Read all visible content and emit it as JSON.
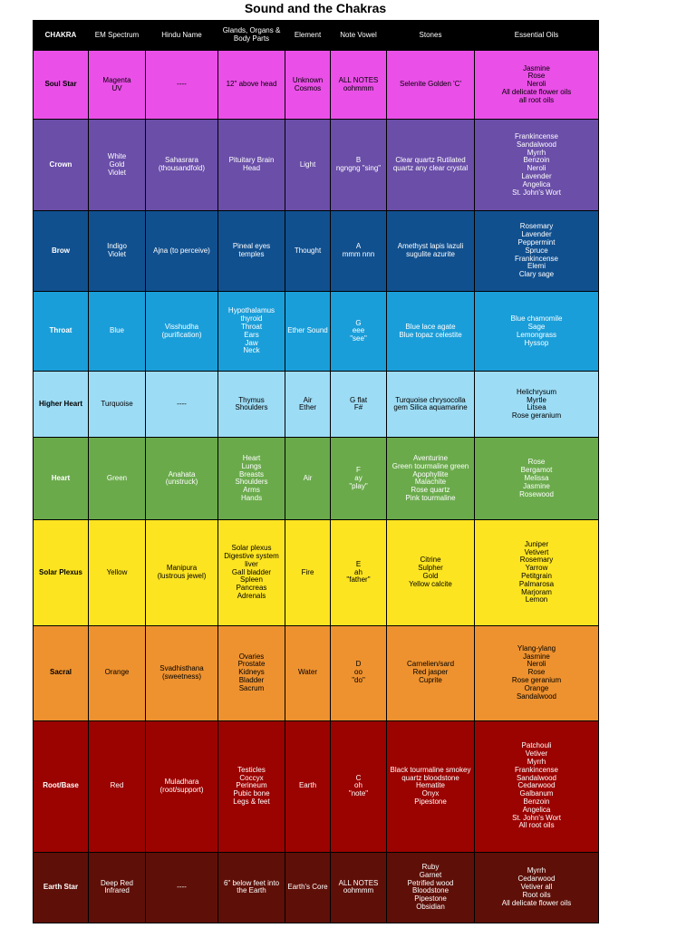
{
  "title": "Sound and the Chakras",
  "columns": [
    "CHAKRA",
    "EM Spectrum",
    "Hindu Name",
    "Glands, Organs & Body Parts",
    "Element",
    "Note Vowel",
    "Stones",
    "Essential Oils"
  ],
  "rows": [
    {
      "bg": "#ea4fe8",
      "fg": "#000000",
      "cells": [
        [
          "Soul Star"
        ],
        [
          "Magenta",
          "UV"
        ],
        [
          "----"
        ],
        [
          "12\" above head"
        ],
        [
          "Unknown",
          "Cosmos"
        ],
        [
          "ALL NOTES",
          "oohmmm"
        ],
        [
          "Selenite Golden 'C'"
        ],
        [
          "Jasmine",
          "Rose",
          "Neroli",
          "All delicate flower oils",
          "all root oils"
        ]
      ]
    },
    {
      "bg": "#6a4ea8",
      "fg": "#ffffff",
      "cells": [
        [
          "Crown"
        ],
        [
          "White",
          "Gold",
          "Violet"
        ],
        [
          "Sahasrara",
          "(thousandfold)"
        ],
        [
          "Pituitary Brain",
          "Head"
        ],
        [
          "Light"
        ],
        [
          "B",
          "ngngng \"sing\""
        ],
        [
          "Clear quartz Rutilated",
          "quartz any clear crystal"
        ],
        [
          "Frankincense",
          "Sandalwood",
          "Myrrh",
          "Benzoin",
          "Neroli",
          "Lavender",
          "Angelica",
          "St. John's Wort"
        ]
      ]
    },
    {
      "bg": "#11508f",
      "fg": "#ffffff",
      "cells": [
        [
          "Brow"
        ],
        [
          "Indigo",
          "Violet"
        ],
        [
          "Ajna (to perceive)"
        ],
        [
          "Pineal eyes",
          "temples"
        ],
        [
          "Thought"
        ],
        [
          "A",
          "mmm nnn"
        ],
        [
          "Amethyst lapis lazuli",
          "sugulite azurite"
        ],
        [
          "Rosemary",
          "Lavender",
          "Peppermint",
          "Spruce",
          "Frankincense",
          "Elemi",
          "Clary sage"
        ]
      ]
    },
    {
      "bg": "#1a9ed9",
      "fg": "#ffffff",
      "cells": [
        [
          "Throat"
        ],
        [
          "Blue"
        ],
        [
          "Visshudha",
          "(purification)"
        ],
        [
          "Hypothalamus",
          "thyroid",
          "Throat",
          "Ears",
          "Jaw",
          "Neck"
        ],
        [
          "Ether Sound"
        ],
        [
          "G",
          "eee",
          "\"see\""
        ],
        [
          "Blue lace agate",
          "Blue topaz celestite"
        ],
        [
          "Blue chamomile",
          "Sage",
          "Lemongrass",
          "Hyssop"
        ]
      ]
    },
    {
      "bg": "#9ddcf5",
      "fg": "#000000",
      "cells": [
        [
          "Higher Heart"
        ],
        [
          "Turquoise"
        ],
        [
          "----"
        ],
        [
          "Thymus",
          "Shoulders"
        ],
        [
          "Air",
          "Ether"
        ],
        [
          "G flat",
          "F#"
        ],
        [
          "Turquoise chrysocolla",
          "gem Silica aquamarine"
        ],
        [
          "Helichrysum",
          "Myrtle",
          "Litsea",
          "Rose geranium"
        ]
      ]
    },
    {
      "bg": "#6aaa4b",
      "fg": "#ffffff",
      "cells": [
        [
          "Heart"
        ],
        [
          "Green"
        ],
        [
          "Anahata",
          "(unstruck)"
        ],
        [
          "Heart",
          "Lungs",
          "Breasts",
          "Shoulders",
          "Arms",
          "Hands"
        ],
        [
          "Air"
        ],
        [
          "F",
          "ay",
          "\"play\""
        ],
        [
          "Aventurine",
          "Green tourmaline green",
          "Apophyllite",
          "Malachite",
          "Rose quartz",
          "Pink tourmaline"
        ],
        [
          "Rose",
          "Bergamot",
          "Melissa",
          "Jasmine",
          "Rosewood"
        ]
      ]
    },
    {
      "bg": "#fde421",
      "fg": "#000000",
      "cells": [
        [
          "Solar Plexus"
        ],
        [
          "Yellow"
        ],
        [
          "Manipura",
          "(lustrous jewel)"
        ],
        [
          "Solar plexus",
          "Digestive system",
          "liver",
          "Gall bladder",
          "Spleen",
          "Pancreas",
          "Adrenals"
        ],
        [
          "Fire"
        ],
        [
          "E",
          "ah",
          "\"father\""
        ],
        [
          "Citrine",
          "Sulpher",
          "Gold",
          "Yellow calcite"
        ],
        [
          "Juniper",
          "Vetivert",
          "Rosemary",
          "Yarrow",
          "Petitgrain",
          "Palmarosa",
          "Marjoram",
          "Lemon"
        ]
      ]
    },
    {
      "bg": "#ee922f",
      "fg": "#000000",
      "cells": [
        [
          "Sacral"
        ],
        [
          "Orange"
        ],
        [
          "Svadhisthana",
          "(sweetness)"
        ],
        [
          "Ovaries",
          "Prostate",
          "Kidneys",
          "Bladder",
          "Sacrum"
        ],
        [
          "Water"
        ],
        [
          "D",
          "oo",
          "\"do\""
        ],
        [
          "Carnelien/sard",
          "Red jasper",
          "Cuprite"
        ],
        [
          "Ylang-ylang",
          "Jasmine",
          "Neroli",
          "Rose",
          "Rose geranium",
          "Orange",
          "Sandalwood"
        ]
      ]
    },
    {
      "bg": "#9b0300",
      "fg": "#ffffff",
      "cells": [
        [
          "Root/Base"
        ],
        [
          "Red"
        ],
        [
          "Muladhara",
          "(root/support)"
        ],
        [
          "Testicles",
          "Coccyx",
          "Perineum",
          "Pubic bone",
          "Legs & feet"
        ],
        [
          "Earth"
        ],
        [
          "C",
          "oh",
          "\"note\""
        ],
        [
          "Black tourmaline smokey",
          "quartz bloodstone",
          "Hematite",
          "Onyx",
          "Pipestone"
        ],
        [
          "Patchouli",
          "Vetiver",
          "Myrrh",
          "Frankincense",
          "Sandalwood",
          "Cedarwood",
          "Galbanum",
          "Benzoin",
          "Angelica",
          "St. John's Wort",
          "All root oils"
        ]
      ]
    },
    {
      "bg": "#5e1008",
      "fg": "#ffffff",
      "cells": [
        [
          "Earth Star"
        ],
        [
          "Deep Red",
          "Infrared"
        ],
        [
          "----"
        ],
        [
          "6\" below feet into",
          "the Earth"
        ],
        [
          "Earth's Core"
        ],
        [
          "ALL NOTES",
          "oohmmm"
        ],
        [
          "Ruby",
          "Garnet",
          "Petrified wood",
          "Bloodstone",
          "Pipestone",
          "Obsidian"
        ],
        [
          "Myrrh",
          "Cedarwood",
          "Vetiver all",
          "Root oils",
          "All delicate flower oils"
        ]
      ]
    }
  ]
}
